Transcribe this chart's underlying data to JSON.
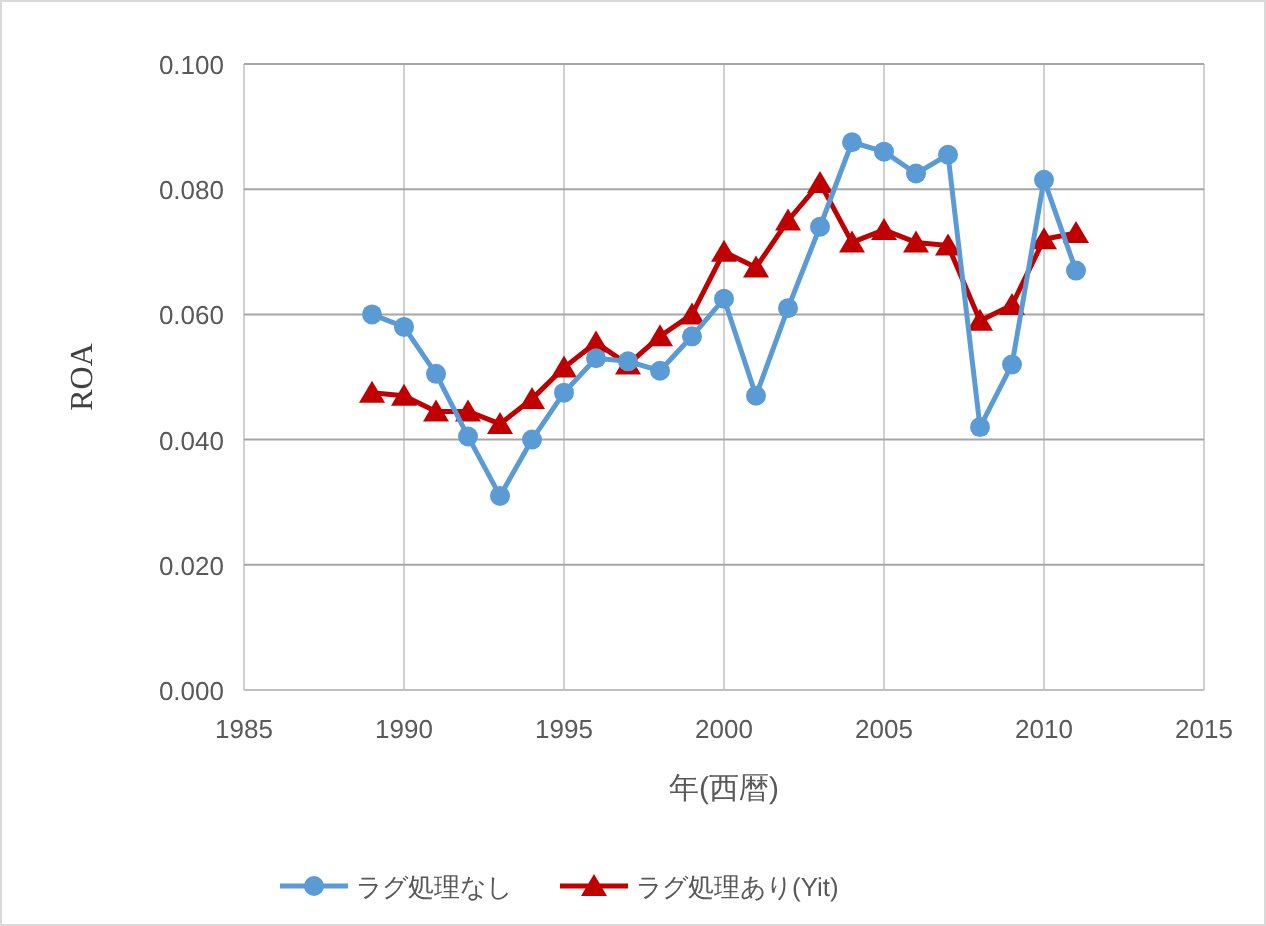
{
  "chart_data": {
    "type": "line",
    "xlabel": "年(西暦)",
    "ylabel": "ROA",
    "x": [
      1989,
      1990,
      1991,
      1992,
      1993,
      1994,
      1995,
      1996,
      1997,
      1998,
      1999,
      2000,
      2001,
      2002,
      2003,
      2004,
      2005,
      2006,
      2007,
      2008,
      2009,
      2010,
      2011
    ],
    "series": [
      {
        "name": "ラグ処理なし",
        "color": "#5b9bd5",
        "marker": "circle",
        "values": [
          0.06,
          0.058,
          0.0505,
          0.0405,
          0.031,
          0.04,
          0.0475,
          0.053,
          0.0525,
          0.051,
          0.0565,
          0.0625,
          0.047,
          0.061,
          0.074,
          0.0875,
          0.086,
          0.0825,
          0.0855,
          0.042,
          0.052,
          0.0815,
          0.067
        ]
      },
      {
        "name": "ラグ処理あり(Yit)",
        "color": "#c00000",
        "marker": "triangle",
        "values": [
          0.0475,
          0.047,
          0.0445,
          0.0445,
          0.0425,
          0.0465,
          0.0515,
          0.0555,
          0.052,
          0.0565,
          0.06,
          0.07,
          0.0675,
          0.075,
          0.081,
          0.0715,
          0.0735,
          0.0715,
          0.071,
          0.059,
          0.0615,
          0.072,
          0.073
        ]
      }
    ],
    "xlim": [
      1985,
      2015
    ],
    "xticks": [
      1985,
      1990,
      1995,
      2000,
      2005,
      2010,
      2015
    ],
    "ylim": [
      0,
      0.1
    ],
    "yticks": [
      {
        "value": 0,
        "label": "0.000"
      },
      {
        "value": 0.02,
        "label": "0.020"
      },
      {
        "value": 0.04,
        "label": "0.040"
      },
      {
        "value": 0.06,
        "label": "0.060"
      },
      {
        "value": 0.08,
        "label": "0.080"
      },
      {
        "value": 0.1,
        "label": "0.100"
      }
    ],
    "grid": true,
    "legend": "bottom",
    "line_style": "solid"
  }
}
